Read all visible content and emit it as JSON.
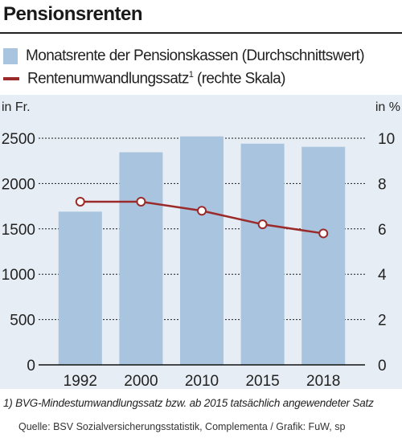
{
  "header": {
    "title": "Pensionsrenten"
  },
  "legend": {
    "bars_label": "Monatsrente der Pensionskassen (Durchschnittswert)",
    "line_label": "Rentenumwandlungssatz",
    "line_sup": "1",
    "line_suffix": " (rechte Skala)"
  },
  "colors": {
    "bar": "#a9c4de",
    "line": "#9b2a2a",
    "background": "#e6edf4"
  },
  "chart_data": {
    "type": "bar",
    "categories": [
      "1992",
      "2000",
      "2010",
      "2015",
      "2018"
    ],
    "left_axis_unit": "in Fr.",
    "right_axis_unit": "in %",
    "ylim": [
      0,
      2500
    ],
    "y2lim": [
      0,
      10
    ],
    "left_ticks": [
      "2500",
      "2000",
      "1500",
      "1000",
      "500",
      "0"
    ],
    "right_ticks": [
      "10",
      "8",
      "6",
      "4",
      "2",
      "0"
    ],
    "grid": true,
    "series": [
      {
        "name": "Monatsrente der Pensionskassen (Durchschnittswert)",
        "type": "bar",
        "axis": "left",
        "values": [
          1690,
          2345,
          2520,
          2440,
          2405
        ]
      },
      {
        "name": "Rentenumwandlungssatz",
        "type": "line",
        "axis": "right",
        "values": [
          7.2,
          7.2,
          6.8,
          6.2,
          5.8
        ]
      }
    ]
  },
  "footnote": "1) BVG-Mindestumwandlungssatz bzw. ab 2015 tatsächlich angewendeter Satz",
  "source": "Quelle: BSV Sozialversicherungsstatistik, Complementa / Grafik: FuW, sp"
}
